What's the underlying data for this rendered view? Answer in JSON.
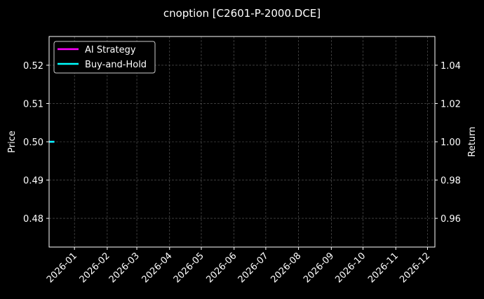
{
  "chart_data": {
    "type": "line",
    "title": "cnoption [C2601-P-2000.DCE]",
    "ylabel": "Price",
    "y2label": "Return",
    "xlim": [
      "2025-12-08",
      "2026-12-08"
    ],
    "ylim": [
      0.4725,
      0.5275
    ],
    "y2lim": [
      0.945,
      1.055
    ],
    "x_ticks": [
      "2026-01",
      "2026-02",
      "2026-03",
      "2026-04",
      "2026-05",
      "2026-06",
      "2026-07",
      "2026-08",
      "2026-09",
      "2026-10",
      "2026-11",
      "2026-12"
    ],
    "y_ticks": [
      "0.48",
      "0.49",
      "0.50",
      "0.51",
      "0.52"
    ],
    "y2_ticks": [
      "0.96",
      "0.98",
      "1.00",
      "1.02",
      "1.04"
    ],
    "grid": true,
    "legend": "upper-left",
    "series": [
      {
        "name": "AI Strategy",
        "axis": "right",
        "color": "#ff00ff",
        "x": [
          "2025-12-08",
          "2025-12-13"
        ],
        "values": [
          1.0,
          1.0
        ]
      },
      {
        "name": "Buy-and-Hold",
        "axis": "right",
        "color": "#00ffff",
        "x": [
          "2025-12-08",
          "2025-12-13"
        ],
        "values": [
          1.0,
          1.0
        ]
      }
    ]
  }
}
